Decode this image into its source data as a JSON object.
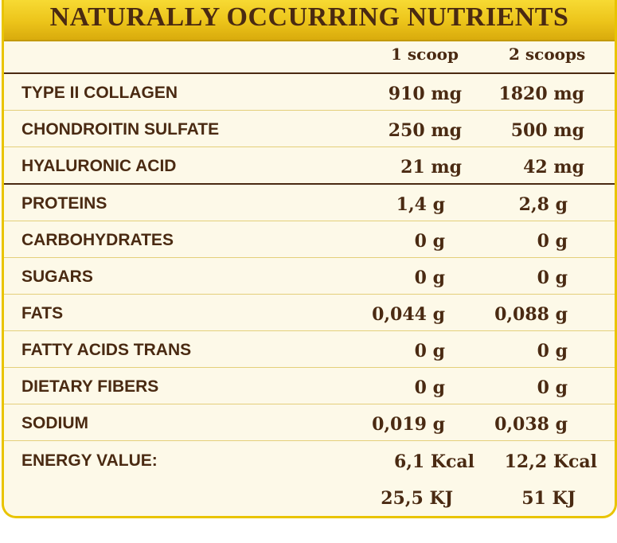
{
  "title": "NATURALLY OCCURRING NUTRIENTS",
  "columns": {
    "col1": "1 scoop",
    "col2": "2 scoops"
  },
  "rows": [
    {
      "label": "TYPE II COLLAGEN",
      "v1": "910 mg",
      "v2": "1820 mg"
    },
    {
      "label": "CHONDROITIN SULFATE",
      "v1": "250 mg",
      "v2": "500 mg"
    },
    {
      "label": "HYALURONIC ACID",
      "v1": "21 mg",
      "v2": "42 mg"
    },
    {
      "label": "PROTEINS",
      "v1": "1,4 g",
      "v2": "2,8 g"
    },
    {
      "label": "CARBOHYDRATES",
      "v1": "0 g",
      "v2": "0 g"
    },
    {
      "label": "SUGARS",
      "v1": "0 g",
      "v2": "0 g"
    },
    {
      "label": "FATS",
      "v1": "0,044 g",
      "v2": "0,088 g"
    },
    {
      "label": "FATTY ACIDS TRANS",
      "v1": "0 g",
      "v2": "0 g"
    },
    {
      "label": "DIETARY FIBERS",
      "v1": "0 g",
      "v2": "0 g"
    },
    {
      "label": "SODIUM",
      "v1": "0,019 g",
      "v2": "0,038 g"
    },
    {
      "label": "ENERGY VALUE:",
      "v1": "6,1 Kcal",
      "v2": "12,2 Kcal"
    },
    {
      "label": "",
      "v1": "25,5 KJ",
      "v2": "51 KJ"
    }
  ],
  "colors": {
    "header_gold": "#ecc41a",
    "border_gold": "#e9c400",
    "text_brown": "#4a2a12",
    "background": "#fdf9e8"
  }
}
